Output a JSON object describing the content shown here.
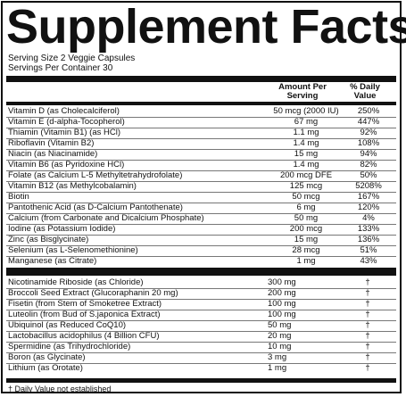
{
  "title": "Supplement Facts",
  "serving_size": "Serving Size 2 Veggie Capsules",
  "servings_per_container": "Servings Per Container 30",
  "header": {
    "amount_line1": "Amount Per",
    "amount_line2": "Serving",
    "dv_line1": "% Daily",
    "dv_line2": "Value"
  },
  "section1": [
    {
      "name": "Vitamin D (as Cholecalciferol)",
      "amount": "50 mcg (2000 IU)",
      "dv": "250%"
    },
    {
      "name": "Vitamin E (d-alpha-Tocopherol)",
      "amount": "67 mg",
      "dv": "447%"
    },
    {
      "name": "Thiamin (Vitamin B1) (as HCl)",
      "amount": "1.1 mg",
      "dv": "92%"
    },
    {
      "name": "Riboflavin (Vitamin B2)",
      "amount": "1.4 mg",
      "dv": "108%"
    },
    {
      "name": "Niacin (as Niacinamide)",
      "amount": "15 mg",
      "dv": "94%"
    },
    {
      "name": "Vitamin B6 (as Pyridoxine HCl)",
      "amount": "1.4 mg",
      "dv": "82%"
    },
    {
      "name": "Folate (as Calcium L-5 Methyltetrahydrofolate)",
      "amount": "200 mcg DFE",
      "dv": "50%"
    },
    {
      "name": "Vitamin B12 (as Methylcobalamin)",
      "amount": "125 mcg",
      "dv": "5208%"
    },
    {
      "name": "Biotin",
      "amount": "50 mcg",
      "dv": "167%"
    },
    {
      "name": "Pantothenic Acid (as D-Calcium Pantothenate)",
      "amount": "6 mg",
      "dv": "120%"
    },
    {
      "name": "Calcium (from Carbonate and Dicalcium Phosphate)",
      "amount": "50 mg",
      "dv": "4%"
    },
    {
      "name": "Iodine (as Potassium Iodide)",
      "amount": "200 mcg",
      "dv": "133%"
    },
    {
      "name": "Zinc (as Bisglycinate)",
      "amount": "15 mg",
      "dv": "136%"
    },
    {
      "name": "Selenium (as L-Selenomethionine)",
      "amount": "28 mcg",
      "dv": "51%"
    },
    {
      "name": "Manganese (as Citrate)",
      "amount": "1 mg",
      "dv": "43%"
    }
  ],
  "section2": [
    {
      "name": "Nicotinamide Riboside (as Chloride)",
      "amount": "300 mg",
      "dv": "†"
    },
    {
      "name": "Broccoli Seed Extract (Glucoraphanin 20 mg)",
      "amount": "200 mg",
      "dv": "†"
    },
    {
      "name": "Fisetin (from Stem of Smoketree Extract)",
      "amount": "100 mg",
      "dv": "†"
    },
    {
      "name": "Luteolin (from Bud of S.japonica Extract)",
      "amount": "100 mg",
      "dv": "†"
    },
    {
      "name": "Ubiquinol (as Reduced CoQ10)",
      "amount": "50 mg",
      "dv": "†"
    },
    {
      "name": "Lactobacillus acidophilus (4 Billion CFU)",
      "amount": "20 mg",
      "dv": "†"
    },
    {
      "name": "Spermidine (as Trihydrochloride)",
      "amount": "10 mg",
      "dv": "†"
    },
    {
      "name": "Boron (as Glycinate)",
      "amount": "3 mg",
      "dv": "†"
    },
    {
      "name": "Lithium (as Orotate)",
      "amount": "1 mg",
      "dv": "†"
    }
  ],
  "footnote": "† Daily Value not established"
}
